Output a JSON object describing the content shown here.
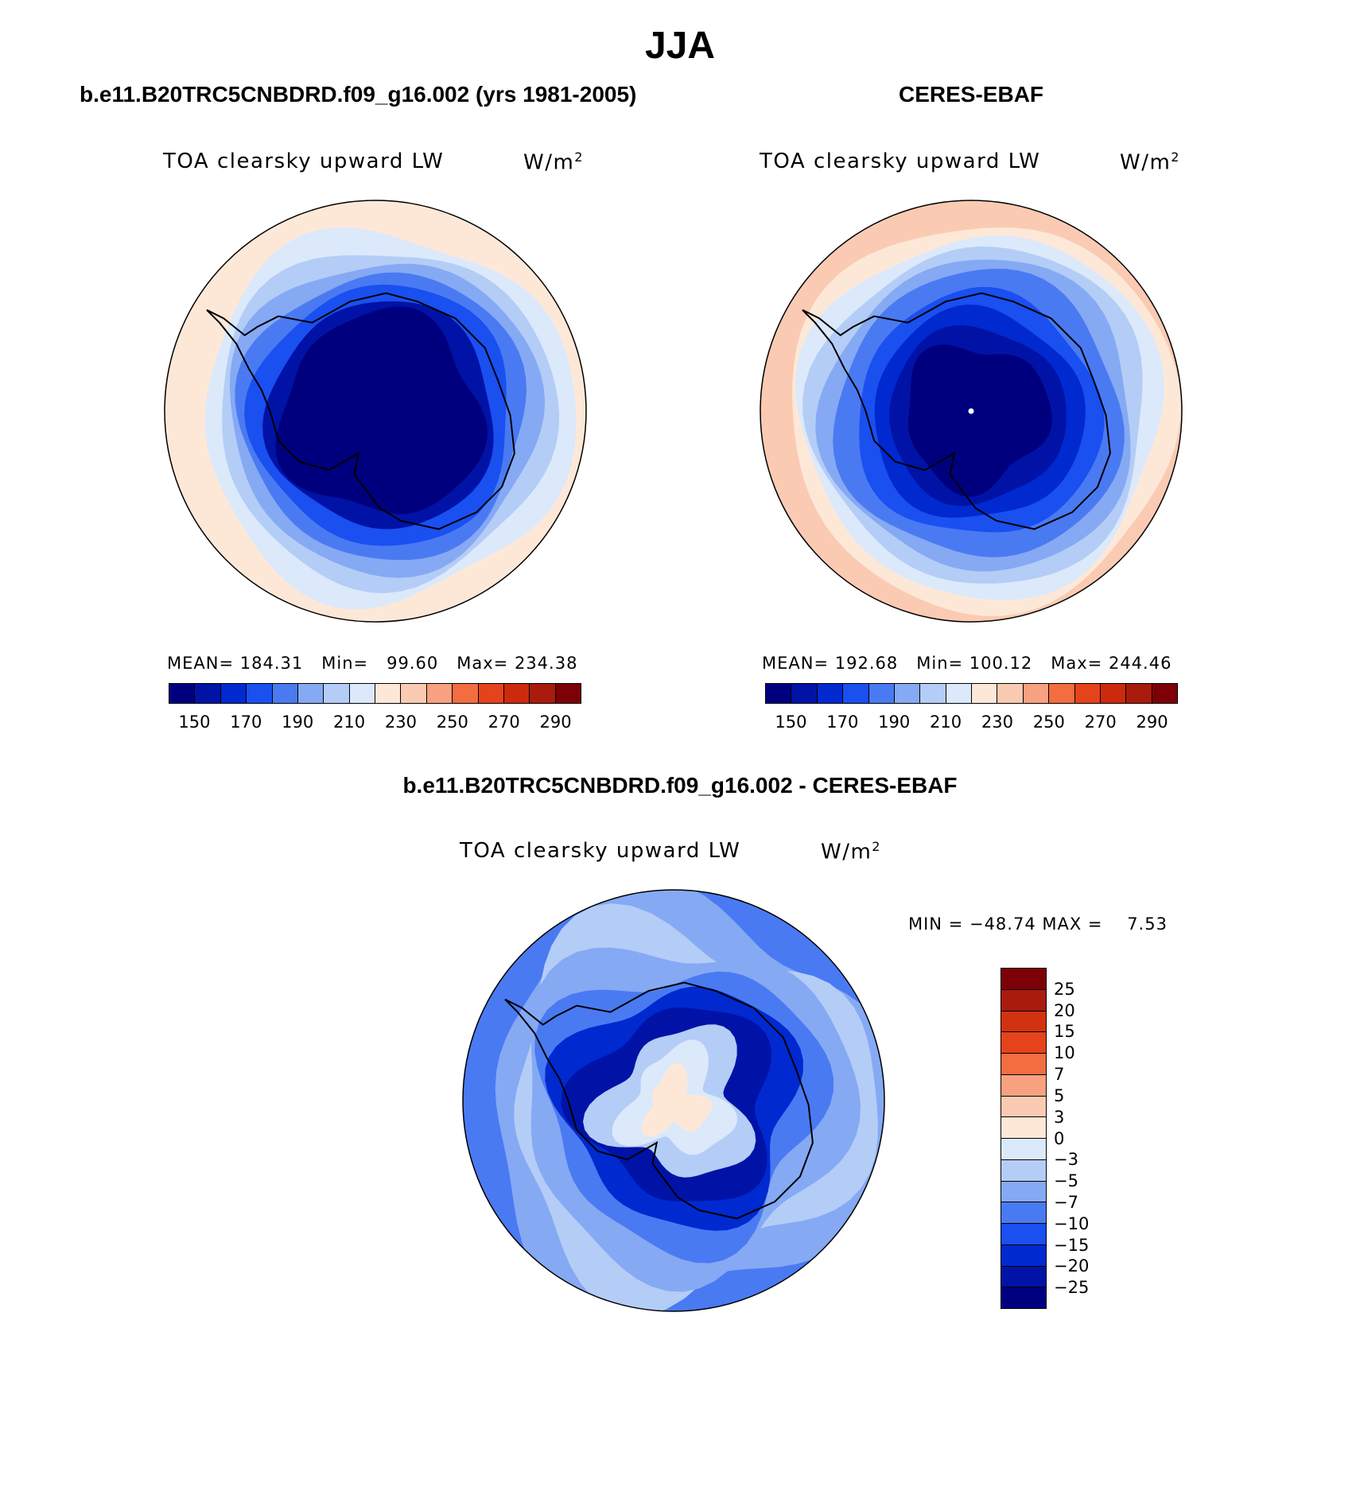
{
  "main_title": "JJA",
  "panels": [
    {
      "title": "b.e11.B20TRC5CNBDRD.f09_g16.002 (yrs 1981-2005)",
      "variable": "TOA clearsky upward LW",
      "unit_base": "W/m",
      "unit_exp": "2",
      "stats": "MEAN= 184.31   Min=   99.60   Max= 234.38",
      "mean": 184.31,
      "min": 99.6,
      "max": 234.38
    },
    {
      "title": "CERES-EBAF",
      "variable": "TOA clearsky upward LW",
      "unit_base": "W/m",
      "unit_exp": "2",
      "stats": "MEAN= 192.68   Min= 100.12   Max= 244.46",
      "mean": 192.68,
      "min": 100.12,
      "max": 244.46
    },
    {
      "title": "b.e11.B20TRC5CNBDRD.f09_g16.002 - CERES-EBAF",
      "variable": "TOA clearsky upward LW",
      "unit_base": "W/m",
      "unit_exp": "2",
      "stats": "MIN = −48.74 MAX =    7.53",
      "min": -48.74,
      "max": 7.53
    }
  ],
  "abs_colorbar": {
    "labels": [
      "150",
      "170",
      "190",
      "210",
      "230",
      "250",
      "270",
      "290"
    ],
    "colors": [
      "#00007f",
      "#0013a6",
      "#0029d0",
      "#1a4ff0",
      "#4a7af2",
      "#86a9f4",
      "#b4cdf7",
      "#dbe9fb",
      "#fde8d8",
      "#fbcab3",
      "#f8a180",
      "#f26d3f",
      "#e5431b",
      "#cc2a0c",
      "#a91b0c",
      "#7d0006"
    ]
  },
  "diff_colorbar": {
    "labels": [
      "25",
      "20",
      "15",
      "10",
      "7",
      "5",
      "3",
      "0",
      "−3",
      "−5",
      "−7",
      "−10",
      "−15",
      "−20",
      "−25"
    ],
    "colors": [
      "#7d0006",
      "#a91b0c",
      "#d23210",
      "#e5431b",
      "#f26d3f",
      "#f8a180",
      "#fbcab3",
      "#fde8d8",
      "#dbe9fb",
      "#b4cdf7",
      "#86a9f4",
      "#4a7af2",
      "#1a4ff0",
      "#0029d0",
      "#0013a6",
      "#00007f"
    ]
  },
  "map_data": {
    "projection": "south-polar-stereographic",
    "fields": [
      "model",
      "observation",
      "difference"
    ],
    "land_outline": "Antarctica"
  }
}
